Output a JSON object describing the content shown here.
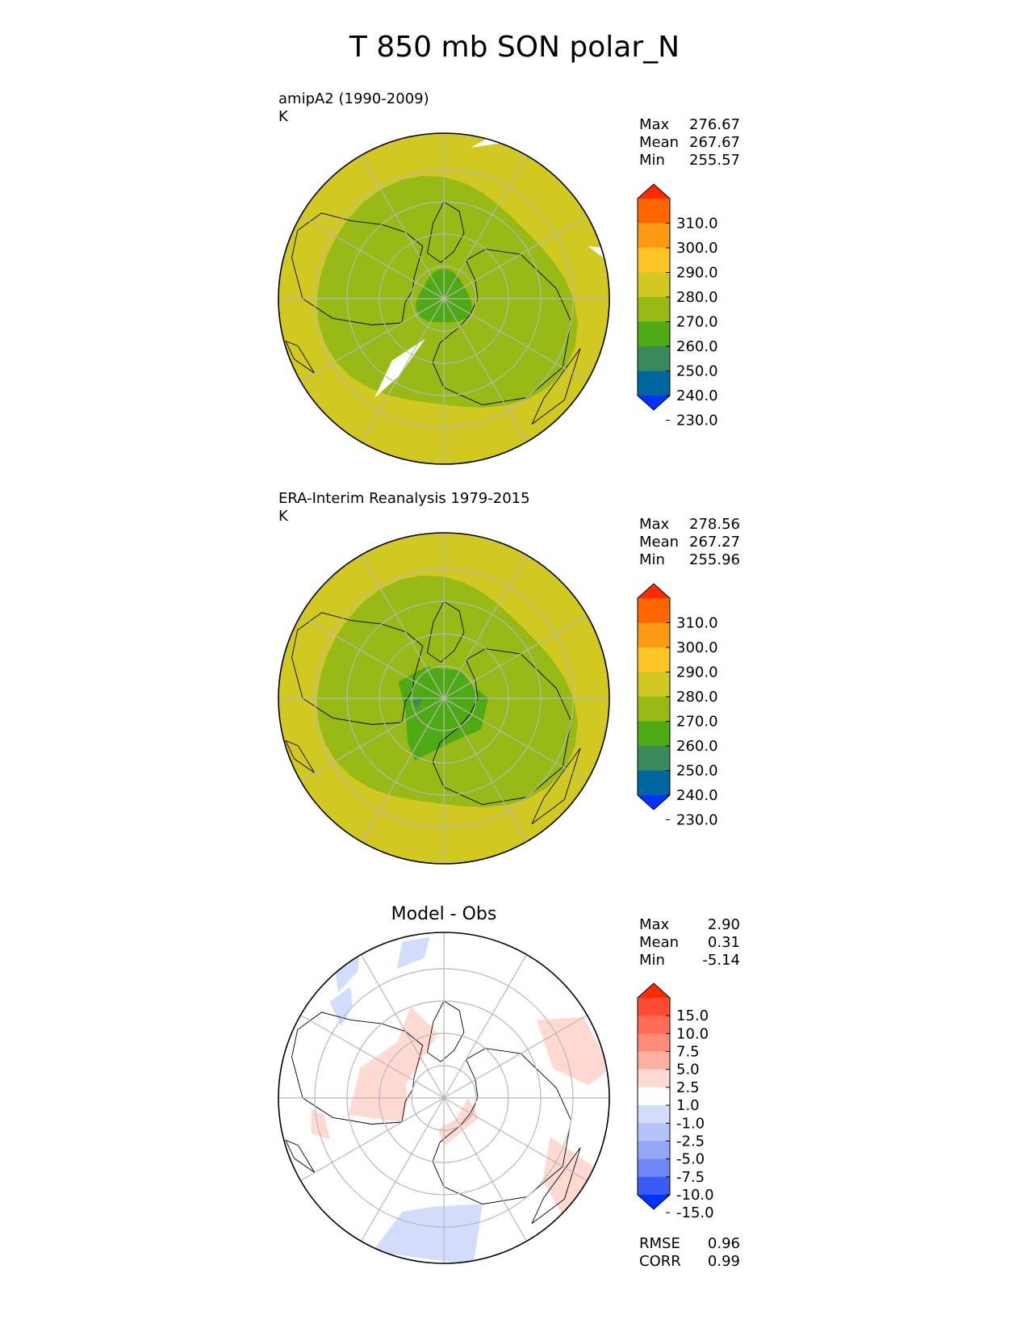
{
  "figure_title": "T 850 mb SON polar_N",
  "chart_data": [
    {
      "type": "heatmap",
      "projection": "north polar stereographic",
      "title": "amipA2 (1990-2009)",
      "units": "K",
      "stats": [
        {
          "label": "Max",
          "value": "276.67"
        },
        {
          "label": "Mean",
          "value": "267.67"
        },
        {
          "label": "Min",
          "value": "255.57"
        }
      ],
      "colorbar": {
        "ticks": [
          "310.0",
          "300.0",
          "290.0",
          "280.0",
          "270.0",
          "260.0",
          "250.0",
          "240.0",
          "230.0"
        ],
        "colors_top_to_bottom": [
          "#ff2a00",
          "#ff6600",
          "#ff9a14",
          "#ffc425",
          "#d1c921",
          "#97ba17",
          "#4daa14",
          "#3a8a5e",
          "#0066a0",
          "#0033ff"
        ],
        "extend": "both"
      }
    },
    {
      "type": "heatmap",
      "projection": "north polar stereographic",
      "title": "ERA-Interim Reanalysis 1979-2015",
      "units": "K",
      "stats": [
        {
          "label": "Max",
          "value": "278.56"
        },
        {
          "label": "Mean",
          "value": "267.27"
        },
        {
          "label": "Min",
          "value": "255.96"
        }
      ],
      "colorbar": {
        "ticks": [
          "310.0",
          "300.0",
          "290.0",
          "280.0",
          "270.0",
          "260.0",
          "250.0",
          "240.0",
          "230.0"
        ],
        "colors_top_to_bottom": [
          "#ff2a00",
          "#ff6600",
          "#ff9a14",
          "#ffc425",
          "#d1c921",
          "#97ba17",
          "#4daa14",
          "#3a8a5e",
          "#0066a0",
          "#0033ff"
        ],
        "extend": "both"
      }
    },
    {
      "type": "heatmap",
      "projection": "north polar stereographic",
      "title": "Model - Obs",
      "stats": [
        {
          "label": "Max",
          "value": "2.90"
        },
        {
          "label": "Mean",
          "value": "0.31"
        },
        {
          "label": "Min",
          "value": "-5.14"
        }
      ],
      "colorbar": {
        "ticks": [
          "15.0",
          "10.0",
          "7.5",
          "5.0",
          "2.5",
          "1.0",
          "-1.0",
          "-2.5",
          "-5.0",
          "-7.5",
          "-10.0",
          "-15.0"
        ],
        "colors_top_to_bottom": [
          "#ff2a00",
          "#ff4b32",
          "#ff6c55",
          "#ff8c78",
          "#ffb0a0",
          "#ffd9d2",
          "#ffffff",
          "#d3dcfb",
          "#b5c3f8",
          "#93a7f6",
          "#6f88f5",
          "#3a5cf6",
          "#0033ff"
        ],
        "extend": "both"
      },
      "metrics": [
        {
          "label": "RMSE",
          "value": "0.96"
        },
        {
          "label": "CORR",
          "value": "0.99"
        }
      ]
    }
  ]
}
